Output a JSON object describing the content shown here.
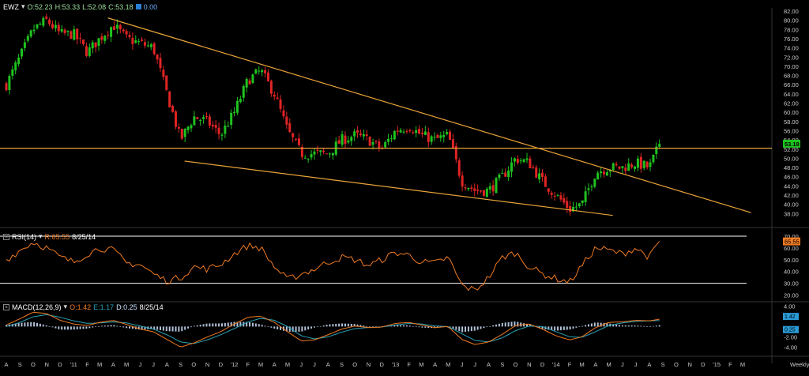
{
  "colors": {
    "background": "#000000",
    "candle_up": "#1fc21f",
    "candle_down": "#e02424",
    "trendline": "#e8a33a",
    "rsi_line": "#f07a22",
    "macd_line": "#f07a22",
    "signal_line": "#2aa3b8",
    "histogram": "#cfe3ff",
    "band_line": "#ffffff",
    "price_badge": "#1fc21f",
    "rsi_badge": "#f07a22",
    "macd_badge": "#2a9bd6"
  },
  "price_panel": {
    "symbol": "EWZ",
    "dropdown": "▾",
    "open": "O:52.23",
    "high": "H:53.33",
    "low": "L:52.08",
    "close": "C:53.18",
    "extra": "0.00",
    "last_price_label": "53.18"
  },
  "rsi_panel": {
    "title": "RSI(14)",
    "dropdown": "▾",
    "value": "R:65.55",
    "date": "8/25/14",
    "badge": "65.55"
  },
  "macd_panel": {
    "title": "MACD(12,26,9)",
    "dropdown": "▾",
    "o": "O:1.42",
    "e": "E:1.17",
    "d": "D:0.25",
    "date": "8/25/14",
    "badge_top": "1.42",
    "badge_bottom": "0.25"
  },
  "x_axis": {
    "labels": [
      "A",
      "S",
      "O",
      "N",
      "D",
      "'11",
      "F",
      "M",
      "A",
      "M",
      "J",
      "J",
      "A",
      "S",
      "O",
      "N",
      "D",
      "'12",
      "F",
      "M",
      "A",
      "M",
      "J",
      "J",
      "A",
      "S",
      "O",
      "N",
      "D",
      "'13",
      "F",
      "M",
      "A",
      "M",
      "J",
      "J",
      "A",
      "S",
      "O",
      "N",
      "D",
      "'14",
      "F",
      "M",
      "A",
      "M",
      "J",
      "J",
      "A",
      "S",
      "O",
      "N",
      "D",
      "'15",
      "F",
      "M"
    ],
    "frequency": "Weekly"
  },
  "chart_data": [
    {
      "type": "candlestick",
      "name": "EWZ",
      "x_start": "2010-08",
      "x_end": "2015-03",
      "ylim": [
        36,
        82
      ],
      "yticks": [
        38,
        40,
        42,
        44,
        46,
        48,
        50,
        52,
        54,
        56,
        58,
        60,
        62,
        64,
        66,
        68,
        70,
        72,
        74,
        76,
        78,
        80,
        82
      ],
      "ytick_labels": [
        "38.00",
        "40.00",
        "42.00",
        "44.00",
        "46.00",
        "48.00",
        "50.00",
        "52.00",
        "54.00",
        "56.00",
        "58.00",
        "60.00",
        "62.00",
        "64.00",
        "66.00",
        "68.00",
        "70.00",
        "72.00",
        "74.00",
        "76.00",
        "78.00",
        "80.00",
        "82.00"
      ],
      "anchors": [
        [
          "2010-08-01",
          66
        ],
        [
          "2010-09-01",
          72
        ],
        [
          "2010-10-01",
          78
        ],
        [
          "2010-11-01",
          80
        ],
        [
          "2010-12-01",
          77
        ],
        [
          "2011-01-01",
          77
        ],
        [
          "2011-02-01",
          73
        ],
        [
          "2011-03-01",
          76
        ],
        [
          "2011-04-01",
          79
        ],
        [
          "2011-05-01",
          76
        ],
        [
          "2011-06-01",
          75
        ],
        [
          "2011-07-01",
          74
        ],
        [
          "2011-08-01",
          64
        ],
        [
          "2011-09-01",
          54
        ],
        [
          "2011-10-01",
          59
        ],
        [
          "2011-11-01",
          58
        ],
        [
          "2011-12-01",
          55
        ],
        [
          "2012-01-01",
          60
        ],
        [
          "2012-02-01",
          67
        ],
        [
          "2012-03-01",
          69
        ],
        [
          "2012-04-01",
          64
        ],
        [
          "2012-05-01",
          56
        ],
        [
          "2012-06-01",
          51
        ],
        [
          "2012-07-01",
          51
        ],
        [
          "2012-08-01",
          51
        ],
        [
          "2012-09-01",
          54
        ],
        [
          "2012-10-01",
          55
        ],
        [
          "2012-11-01",
          54
        ],
        [
          "2012-12-01",
          52
        ],
        [
          "2013-01-01",
          56
        ],
        [
          "2013-02-01",
          57
        ],
        [
          "2013-03-01",
          55
        ],
        [
          "2013-04-01",
          54
        ],
        [
          "2013-05-01",
          55
        ],
        [
          "2013-06-01",
          45
        ],
        [
          "2013-07-01",
          43
        ],
        [
          "2013-08-01",
          43
        ],
        [
          "2013-09-01",
          46
        ],
        [
          "2013-10-01",
          50
        ],
        [
          "2013-11-01",
          49
        ],
        [
          "2013-12-01",
          45
        ],
        [
          "2014-01-01",
          42
        ],
        [
          "2014-02-01",
          39
        ],
        [
          "2014-03-01",
          40
        ],
        [
          "2014-04-01",
          47
        ],
        [
          "2014-05-01",
          48
        ],
        [
          "2014-06-01",
          48
        ],
        [
          "2014-07-01",
          49
        ],
        [
          "2014-08-01",
          48
        ],
        [
          "2014-08-25",
          53.18
        ]
      ],
      "last_close": 53.18,
      "horizontal_line": 52.2,
      "trendlines": [
        {
          "from": [
            "2011-03-20",
            80.5
          ],
          "to": [
            "2015-03-20",
            38.2
          ]
        },
        {
          "from": [
            "2011-09-10",
            49.4
          ],
          "to": [
            "2014-05-10",
            37.6
          ]
        }
      ]
    },
    {
      "type": "line",
      "name": "RSI(14)",
      "ylim": [
        17,
        72
      ],
      "yticks": [
        20,
        30,
        40,
        50,
        60,
        70
      ],
      "ytick_labels": [
        "20.00",
        "30.00",
        "40.00",
        "50.00",
        "60.00",
        "70.00"
      ],
      "bands": [
        30,
        70
      ],
      "last": 65.55,
      "anchors": [
        [
          "2010-08-01",
          50
        ],
        [
          "2010-09-01",
          58
        ],
        [
          "2010-10-01",
          65
        ],
        [
          "2010-11-01",
          60
        ],
        [
          "2010-12-01",
          52
        ],
        [
          "2011-01-01",
          48
        ],
        [
          "2011-02-01",
          55
        ],
        [
          "2011-03-01",
          60
        ],
        [
          "2011-04-01",
          58
        ],
        [
          "2011-05-01",
          47
        ],
        [
          "2011-06-01",
          46
        ],
        [
          "2011-07-01",
          38
        ],
        [
          "2011-08-01",
          32
        ],
        [
          "2011-09-01",
          35
        ],
        [
          "2011-10-01",
          44
        ],
        [
          "2011-11-01",
          42
        ],
        [
          "2011-12-01",
          46
        ],
        [
          "2012-01-01",
          55
        ],
        [
          "2012-02-01",
          62
        ],
        [
          "2012-03-01",
          60
        ],
        [
          "2012-04-01",
          44
        ],
        [
          "2012-05-01",
          33
        ],
        [
          "2012-06-01",
          38
        ],
        [
          "2012-07-01",
          42
        ],
        [
          "2012-08-01",
          48
        ],
        [
          "2012-09-01",
          52
        ],
        [
          "2012-10-01",
          50
        ],
        [
          "2012-11-01",
          45
        ],
        [
          "2012-12-01",
          50
        ],
        [
          "2013-01-01",
          56
        ],
        [
          "2013-02-01",
          54
        ],
        [
          "2013-03-01",
          48
        ],
        [
          "2013-04-01",
          47
        ],
        [
          "2013-05-01",
          52
        ],
        [
          "2013-06-01",
          28
        ],
        [
          "2013-07-01",
          24
        ],
        [
          "2013-08-01",
          35
        ],
        [
          "2013-09-01",
          52
        ],
        [
          "2013-10-01",
          56
        ],
        [
          "2013-11-01",
          44
        ],
        [
          "2013-12-01",
          38
        ],
        [
          "2014-01-01",
          34
        ],
        [
          "2014-02-01",
          31
        ],
        [
          "2014-03-01",
          45
        ],
        [
          "2014-04-01",
          60
        ],
        [
          "2014-05-01",
          58
        ],
        [
          "2014-06-01",
          55
        ],
        [
          "2014-07-01",
          60
        ],
        [
          "2014-08-01",
          52
        ],
        [
          "2014-08-25",
          65.55
        ]
      ]
    },
    {
      "type": "macd",
      "name": "MACD(12,26,9)",
      "ylim": [
        -5,
        4.5
      ],
      "yticks": [
        4,
        2,
        0,
        -2,
        -4
      ],
      "ytick_labels": [
        "4.00",
        "2.00",
        "",
        "-2.00",
        "-4.00"
      ],
      "last_macd": 1.42,
      "last_signal": 1.17,
      "last_hist": 0.25,
      "macd_anchors": [
        [
          "2010-08-01",
          0.3
        ],
        [
          "2010-09-01",
          1.5
        ],
        [
          "2010-10-01",
          2.8
        ],
        [
          "2010-11-01",
          2.5
        ],
        [
          "2010-12-01",
          1.2
        ],
        [
          "2011-01-01",
          0.5
        ],
        [
          "2011-02-01",
          0.2
        ],
        [
          "2011-03-01",
          0.8
        ],
        [
          "2011-04-01",
          1.2
        ],
        [
          "2011-05-01",
          0.4
        ],
        [
          "2011-06-01",
          -0.5
        ],
        [
          "2011-07-01",
          -1.0
        ],
        [
          "2011-08-01",
          -2.5
        ],
        [
          "2011-09-01",
          -4.0
        ],
        [
          "2011-10-01",
          -3.2
        ],
        [
          "2011-11-01",
          -2.0
        ],
        [
          "2011-12-01",
          -1.0
        ],
        [
          "2012-01-01",
          0.5
        ],
        [
          "2012-02-01",
          1.8
        ],
        [
          "2012-03-01",
          2.0
        ],
        [
          "2012-04-01",
          0.8
        ],
        [
          "2012-05-01",
          -1.0
        ],
        [
          "2012-06-01",
          -2.8
        ],
        [
          "2012-07-01",
          -2.6
        ],
        [
          "2012-08-01",
          -1.6
        ],
        [
          "2012-09-01",
          -0.5
        ],
        [
          "2012-10-01",
          0.1
        ],
        [
          "2012-11-01",
          -0.2
        ],
        [
          "2012-12-01",
          -0.1
        ],
        [
          "2013-01-01",
          0.6
        ],
        [
          "2013-02-01",
          0.8
        ],
        [
          "2013-03-01",
          0.3
        ],
        [
          "2013-04-01",
          -0.2
        ],
        [
          "2013-05-01",
          0.0
        ],
        [
          "2013-06-01",
          -2.5
        ],
        [
          "2013-07-01",
          -3.5
        ],
        [
          "2013-08-01",
          -3.0
        ],
        [
          "2013-09-01",
          -1.5
        ],
        [
          "2013-10-01",
          0.2
        ],
        [
          "2013-11-01",
          0.5
        ],
        [
          "2013-12-01",
          -0.5
        ],
        [
          "2014-01-01",
          -1.8
        ],
        [
          "2014-02-01",
          -2.6
        ],
        [
          "2014-03-01",
          -2.0
        ],
        [
          "2014-04-01",
          -0.2
        ],
        [
          "2014-05-01",
          0.8
        ],
        [
          "2014-06-01",
          0.9
        ],
        [
          "2014-07-01",
          1.2
        ],
        [
          "2014-08-01",
          1.1
        ],
        [
          "2014-08-25",
          1.42
        ]
      ],
      "signal_anchors": [
        [
          "2010-08-01",
          0.0
        ],
        [
          "2010-09-01",
          0.8
        ],
        [
          "2010-10-01",
          1.9
        ],
        [
          "2010-11-01",
          2.3
        ],
        [
          "2010-12-01",
          1.8
        ],
        [
          "2011-01-01",
          1.1
        ],
        [
          "2011-02-01",
          0.6
        ],
        [
          "2011-03-01",
          0.7
        ],
        [
          "2011-04-01",
          0.9
        ],
        [
          "2011-05-01",
          0.7
        ],
        [
          "2011-06-01",
          0.1
        ],
        [
          "2011-07-01",
          -0.5
        ],
        [
          "2011-08-01",
          -1.6
        ],
        [
          "2011-09-01",
          -3.0
        ],
        [
          "2011-10-01",
          -3.3
        ],
        [
          "2011-11-01",
          -2.6
        ],
        [
          "2011-12-01",
          -1.6
        ],
        [
          "2012-01-01",
          -0.4
        ],
        [
          "2012-02-01",
          0.9
        ],
        [
          "2012-03-01",
          1.6
        ],
        [
          "2012-04-01",
          1.2
        ],
        [
          "2012-05-01",
          0.0
        ],
        [
          "2012-06-01",
          -1.8
        ],
        [
          "2012-07-01",
          -2.4
        ],
        [
          "2012-08-01",
          -2.0
        ],
        [
          "2012-09-01",
          -1.1
        ],
        [
          "2012-10-01",
          -0.4
        ],
        [
          "2012-11-01",
          -0.2
        ],
        [
          "2012-12-01",
          -0.1
        ],
        [
          "2013-01-01",
          0.3
        ],
        [
          "2013-02-01",
          0.6
        ],
        [
          "2013-03-01",
          0.5
        ],
        [
          "2013-04-01",
          0.1
        ],
        [
          "2013-05-01",
          0.0
        ],
        [
          "2013-06-01",
          -1.4
        ],
        [
          "2013-07-01",
          -2.7
        ],
        [
          "2013-08-01",
          -3.0
        ],
        [
          "2013-09-01",
          -2.2
        ],
        [
          "2013-10-01",
          -0.8
        ],
        [
          "2013-11-01",
          0.1
        ],
        [
          "2013-12-01",
          0.0
        ],
        [
          "2014-01-01",
          -1.0
        ],
        [
          "2014-02-01",
          -2.0
        ],
        [
          "2014-03-01",
          -2.1
        ],
        [
          "2014-04-01",
          -1.0
        ],
        [
          "2014-05-01",
          0.2
        ],
        [
          "2014-06-01",
          0.7
        ],
        [
          "2014-07-01",
          1.0
        ],
        [
          "2014-08-01",
          1.1
        ],
        [
          "2014-08-25",
          1.17
        ]
      ]
    }
  ]
}
